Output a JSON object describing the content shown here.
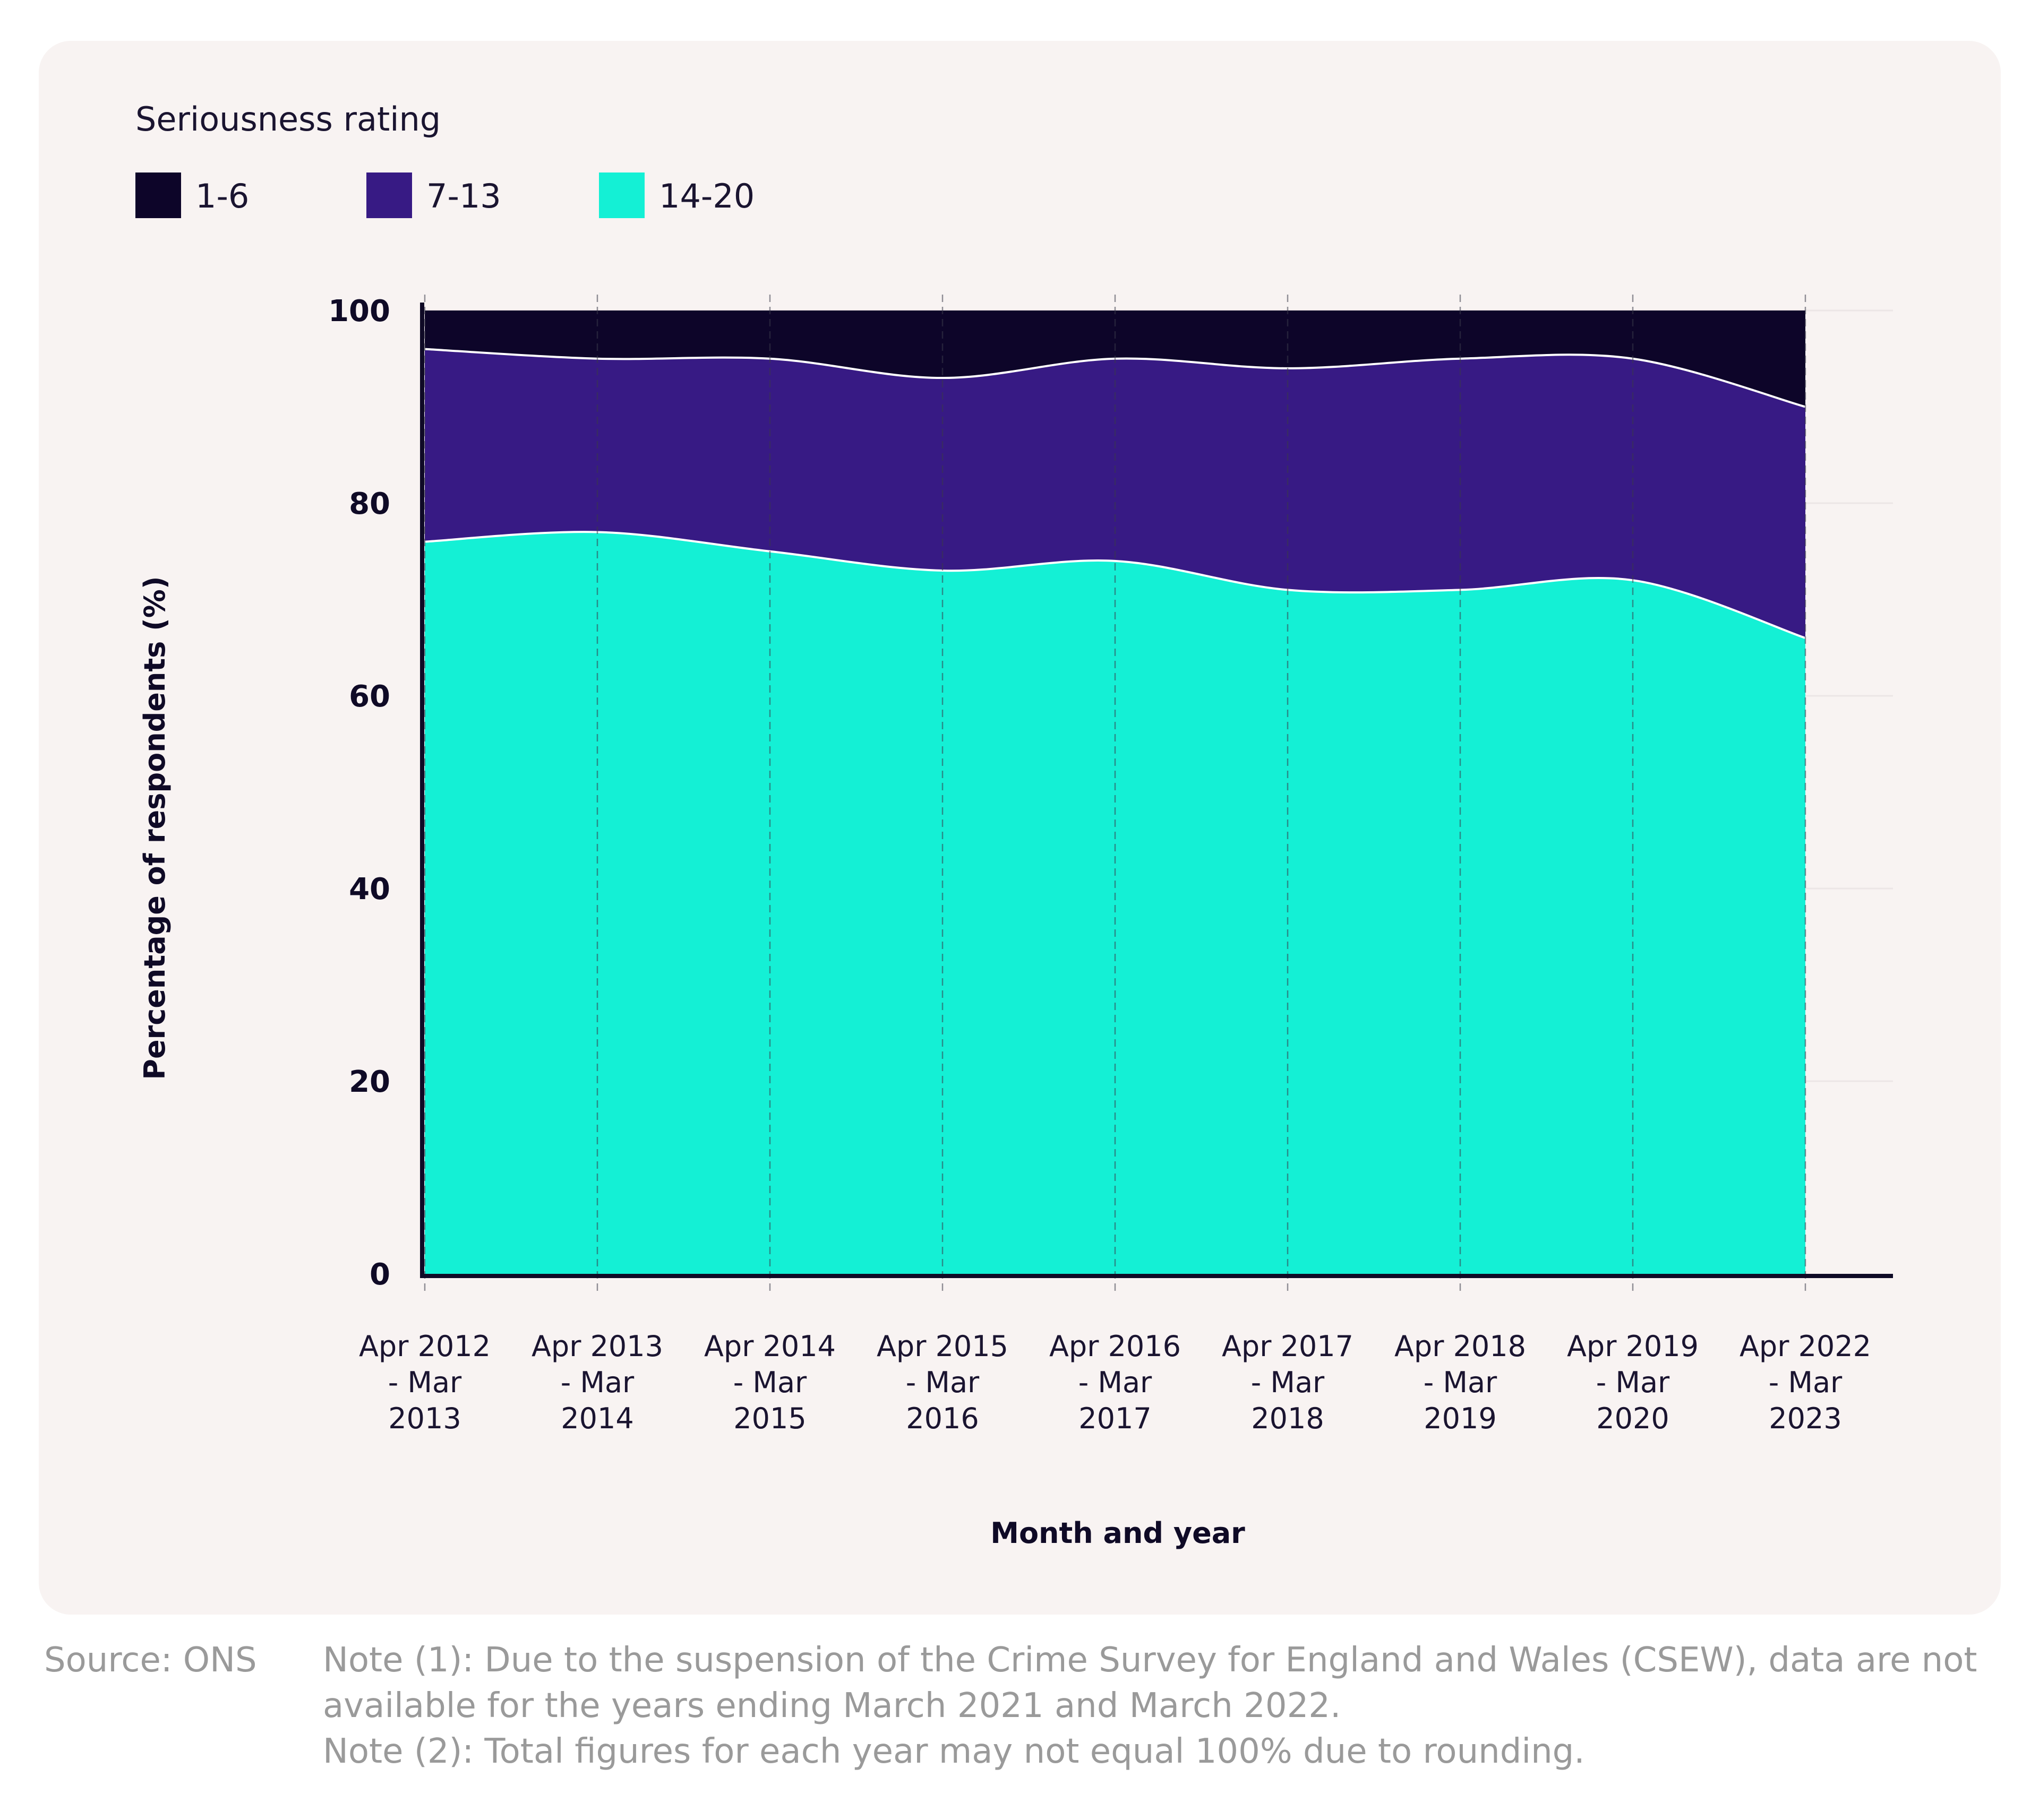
{
  "legend": {
    "title": "Seriousness rating",
    "items": [
      {
        "label": "1-6",
        "color": "#0d0529"
      },
      {
        "label": "7-13",
        "color": "#371a84"
      },
      {
        "label": "14-20",
        "color": "#14f0d5"
      }
    ]
  },
  "footer": {
    "source": "Source: ONS",
    "notes": [
      "Note (1): Due to the suspension of the Crime Survey for England and Wales (CSEW), data are not",
      "available for the years ending March 2021 and March 2022.",
      "Note (2): Total figures for each year may not equal 100% due to rounding."
    ]
  },
  "chart_data": {
    "type": "area",
    "stacked": true,
    "xlabel": "Month and year",
    "ylabel": "Percentage of respondents (%)",
    "ylim": [
      0,
      100
    ],
    "yticks": [
      0,
      20,
      40,
      60,
      80,
      100
    ],
    "categories": [
      [
        "Apr 2012",
        "- Mar",
        "2013"
      ],
      [
        "Apr 2013",
        "- Mar",
        "2014"
      ],
      [
        "Apr 2014",
        "- Mar",
        "2015"
      ],
      [
        "Apr 2015",
        "- Mar",
        "2016"
      ],
      [
        "Apr 2016",
        "- Mar",
        "2017"
      ],
      [
        "Apr 2017",
        "- Mar",
        "2018"
      ],
      [
        "Apr 2018",
        "- Mar",
        "2019"
      ],
      [
        "Apr 2019",
        "- Mar",
        "2020"
      ],
      [
        "Apr 2022",
        "- Mar",
        "2023"
      ]
    ],
    "series": [
      {
        "name": "14-20",
        "color": "#14f0d5",
        "values": [
          76,
          77,
          75,
          73,
          74,
          71,
          71,
          72,
          66
        ]
      },
      {
        "name": "7-13",
        "color": "#371a84",
        "values": [
          20,
          18,
          20,
          20,
          21,
          23,
          24,
          23,
          24
        ]
      },
      {
        "name": "1-6",
        "color": "#0d0529",
        "values": [
          4,
          5,
          5,
          7,
          5,
          6,
          5,
          5,
          10
        ]
      }
    ],
    "grid": "vertical dashed lines at each category",
    "legend_position": "top-left"
  }
}
